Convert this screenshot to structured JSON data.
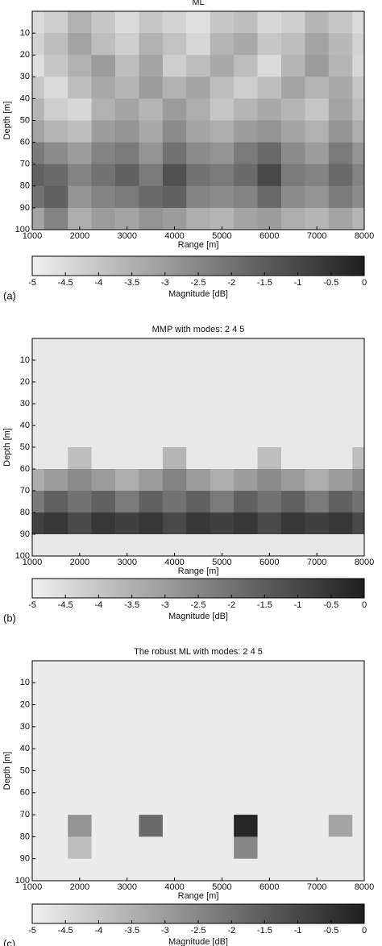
{
  "chart_data": [
    {
      "type": "heatmap",
      "title": "ML",
      "panel_label": "(a)",
      "xlabel": "Range [m]",
      "ylabel": "Depth [m]",
      "x": [
        1000,
        1500,
        2000,
        2500,
        3000,
        3500,
        4000,
        4500,
        5000,
        5500,
        6000,
        6500,
        7000,
        7500,
        8000
      ],
      "y": [
        5,
        15,
        25,
        35,
        45,
        55,
        65,
        75,
        85,
        95
      ],
      "z": [
        [
          -4.5,
          -4.2,
          -3.5,
          -4,
          -4.5,
          -4,
          -4.3,
          -4.6,
          -4,
          -3.8,
          -4.4,
          -4.2,
          -3.6,
          -4,
          -4.5
        ],
        [
          -4.3,
          -3.8,
          -3.2,
          -3.8,
          -4.2,
          -3.5,
          -3.9,
          -4.4,
          -3.6,
          -3.3,
          -4,
          -3.8,
          -3.2,
          -3.7,
          -4.3
        ],
        [
          -4.6,
          -4,
          -3.5,
          -3,
          -3.8,
          -3.2,
          -4.2,
          -3.8,
          -3.3,
          -3.8,
          -4.5,
          -3.6,
          -3,
          -3.6,
          -4.4
        ],
        [
          -4,
          -4.5,
          -3.8,
          -3.3,
          -3.6,
          -3,
          -3.5,
          -3.2,
          -3.8,
          -4.2,
          -3.8,
          -3.2,
          -3.6,
          -3.3,
          -4
        ],
        [
          -3.6,
          -4.2,
          -4.4,
          -3.5,
          -3.2,
          -3.6,
          -3,
          -3.4,
          -4,
          -3.6,
          -3.3,
          -3.6,
          -4,
          -3.2,
          -3.8
        ],
        [
          -3.2,
          -3.6,
          -3.8,
          -3,
          -2.8,
          -3.3,
          -2.6,
          -3.2,
          -3.4,
          -3,
          -2.8,
          -3.2,
          -3.5,
          -2.8,
          -3.4
        ],
        [
          -2.2,
          -2.6,
          -3,
          -2.4,
          -2.2,
          -2.8,
          -2,
          -2.6,
          -2.8,
          -2.2,
          -1.8,
          -2.6,
          -3,
          -2.2,
          -2.8
        ],
        [
          -1.6,
          -1.8,
          -2.4,
          -2,
          -1.6,
          -2.2,
          -1.2,
          -2,
          -2.2,
          -1.8,
          -1,
          -2.2,
          -2.4,
          -1.8,
          -2.4
        ],
        [
          -2,
          -1.6,
          -2.8,
          -2.4,
          -2.2,
          -1.8,
          -1.6,
          -2.4,
          -2.6,
          -2.4,
          -1.8,
          -2.6,
          -2.8,
          -2.2,
          -2.6
        ],
        [
          -3.2,
          -2.4,
          -3.4,
          -3,
          -3.2,
          -2.8,
          -3,
          -3.4,
          -3.6,
          -3.2,
          -3,
          -3.4,
          -3.6,
          -3.2,
          -3.6
        ]
      ],
      "xlim": [
        1000,
        8000
      ],
      "ylim": [
        0,
        100
      ],
      "xticks": [
        1000,
        2000,
        3000,
        4000,
        5000,
        6000,
        7000,
        8000
      ],
      "yticks": [
        10,
        20,
        30,
        40,
        50,
        60,
        70,
        80,
        90,
        100
      ],
      "colorbar": {
        "label": "Magnitude [dB]",
        "lim": [
          -5,
          0
        ],
        "ticks": [
          -5,
          -4.5,
          -4,
          -3.5,
          -3,
          -2.5,
          -2,
          -1.5,
          -1,
          -0.5,
          0
        ]
      }
    },
    {
      "type": "heatmap",
      "title": "MMP with modes: 2 4 5",
      "panel_label": "(b)",
      "xlabel": "Range [m]",
      "ylabel": "Depth [m]",
      "x": [
        1000,
        1500,
        2000,
        2500,
        3000,
        3500,
        4000,
        4500,
        5000,
        5500,
        6000,
        6500,
        7000,
        7500,
        8000
      ],
      "y": [
        5,
        15,
        25,
        35,
        45,
        55,
        65,
        75,
        85,
        95
      ],
      "z": [
        [
          -4.8,
          -4.8,
          -4.8,
          -4.8,
          -4.8,
          -4.8,
          -4.8,
          -4.8,
          -4.8,
          -4.8,
          -4.8,
          -4.8,
          -4.8,
          -4.8,
          -4.8
        ],
        [
          -4.8,
          -4.8,
          -4.8,
          -4.8,
          -4.8,
          -4.8,
          -4.8,
          -4.8,
          -4.8,
          -4.8,
          -4.8,
          -4.8,
          -4.8,
          -4.8,
          -4.8
        ],
        [
          -4.8,
          -4.8,
          -4.8,
          -4.8,
          -4.8,
          -4.8,
          -4.8,
          -4.8,
          -4.8,
          -4.8,
          -4.8,
          -4.8,
          -4.8,
          -4.8,
          -4.8
        ],
        [
          -4.8,
          -4.8,
          -4.8,
          -4.8,
          -4.8,
          -4.8,
          -4.8,
          -4.8,
          -4.8,
          -4.8,
          -4.8,
          -4.8,
          -4.8,
          -4.8,
          -4.8
        ],
        [
          -4.8,
          -4.8,
          -4.8,
          -4.8,
          -4.8,
          -4.8,
          -4.8,
          -4.8,
          -4.8,
          -4.8,
          -4.8,
          -4.8,
          -4.8,
          -4.8,
          -4.8
        ],
        [
          -4.8,
          -4.8,
          -3.8,
          -4.8,
          -4.8,
          -4.8,
          -3.6,
          -4.8,
          -4.8,
          -4.8,
          -3.8,
          -4.8,
          -4.8,
          -4.8,
          -3.8
        ],
        [
          -3.4,
          -3,
          -2.6,
          -3,
          -3.4,
          -3,
          -2.4,
          -3,
          -3.4,
          -3,
          -2.6,
          -3,
          -3.4,
          -3,
          -2.6
        ],
        [
          -2.2,
          -1.6,
          -2,
          -1.6,
          -2.2,
          -1.6,
          -2,
          -1.6,
          -2.2,
          -1.6,
          -2,
          -1.6,
          -2.2,
          -1.6,
          -2
        ],
        [
          -0.8,
          -0.6,
          -1,
          -0.6,
          -0.8,
          -0.6,
          -1,
          -0.6,
          -0.8,
          -0.6,
          -1,
          -0.6,
          -0.8,
          -0.6,
          -1
        ],
        [
          -4.8,
          -4.8,
          -4.8,
          -4.8,
          -4.8,
          -4.8,
          -4.8,
          -4.8,
          -4.8,
          -4.8,
          -4.8,
          -4.8,
          -4.8,
          -4.8,
          -4.8
        ]
      ],
      "xlim": [
        1000,
        8000
      ],
      "ylim": [
        0,
        100
      ],
      "xticks": [
        1000,
        2000,
        3000,
        4000,
        5000,
        6000,
        7000,
        8000
      ],
      "yticks": [
        10,
        20,
        30,
        40,
        50,
        60,
        70,
        80,
        90,
        100
      ],
      "colorbar": {
        "label": "Magnitude [dB]",
        "lim": [
          -5,
          0
        ],
        "ticks": [
          -5,
          -4.5,
          -4,
          -3.5,
          -3,
          -2.5,
          -2,
          -1.5,
          -1,
          -0.5,
          0
        ]
      }
    },
    {
      "type": "heatmap",
      "title": "The robust ML with modes: 2 4 5",
      "panel_label": "(c)",
      "xlabel": "Range [m]",
      "ylabel": "Depth [m]",
      "x": [
        1000,
        1500,
        2000,
        2500,
        3000,
        3500,
        4000,
        4500,
        5000,
        5500,
        6000,
        6500,
        7000,
        7500,
        8000
      ],
      "y": [
        5,
        15,
        25,
        35,
        45,
        55,
        65,
        75,
        85,
        95
      ],
      "z": [
        [
          -4.9,
          -4.9,
          -4.9,
          -4.9,
          -4.9,
          -4.9,
          -4.9,
          -4.9,
          -4.9,
          -4.9,
          -4.9,
          -4.9,
          -4.9,
          -4.9,
          -4.9
        ],
        [
          -4.9,
          -4.9,
          -4.9,
          -4.9,
          -4.9,
          -4.9,
          -4.9,
          -4.9,
          -4.9,
          -4.9,
          -4.9,
          -4.9,
          -4.9,
          -4.9,
          -4.9
        ],
        [
          -4.9,
          -4.9,
          -4.9,
          -4.9,
          -4.9,
          -4.9,
          -4.9,
          -4.9,
          -4.9,
          -4.9,
          -4.9,
          -4.9,
          -4.9,
          -4.9,
          -4.9
        ],
        [
          -4.9,
          -4.9,
          -4.9,
          -4.9,
          -4.9,
          -4.9,
          -4.9,
          -4.9,
          -4.9,
          -4.9,
          -4.9,
          -4.9,
          -4.9,
          -4.9,
          -4.9
        ],
        [
          -4.9,
          -4.9,
          -4.9,
          -4.9,
          -4.9,
          -4.9,
          -4.9,
          -4.9,
          -4.9,
          -4.9,
          -4.9,
          -4.9,
          -4.9,
          -4.9,
          -4.9
        ],
        [
          -4.9,
          -4.9,
          -4.9,
          -4.9,
          -4.9,
          -4.9,
          -4.9,
          -4.9,
          -4.9,
          -4.9,
          -4.9,
          -4.9,
          -4.9,
          -4.9,
          -4.9
        ],
        [
          -4.9,
          -4.9,
          -4.9,
          -4.9,
          -4.9,
          -4.9,
          -4.9,
          -4.9,
          -4.9,
          -4.9,
          -4.9,
          -4.9,
          -4.9,
          -4.9,
          -4.9
        ],
        [
          -4.9,
          -4.9,
          -2.8,
          -4.9,
          -4.9,
          -1.8,
          -4.9,
          -4.9,
          -4.9,
          -0.2,
          -4.9,
          -4.9,
          -4.9,
          -3.2,
          -4.9
        ],
        [
          -4.9,
          -4.9,
          -3.8,
          -4.9,
          -4.9,
          -4.9,
          -4.9,
          -4.9,
          -4.9,
          -2.5,
          -4.9,
          -4.9,
          -4.9,
          -4.9,
          -4.9
        ],
        [
          -4.9,
          -4.9,
          -4.9,
          -4.9,
          -4.9,
          -4.9,
          -4.9,
          -4.9,
          -4.9,
          -4.9,
          -4.9,
          -4.9,
          -4.9,
          -4.9,
          -4.9
        ]
      ],
      "xlim": [
        1000,
        8000
      ],
      "ylim": [
        0,
        100
      ],
      "xticks": [
        1000,
        2000,
        3000,
        4000,
        5000,
        6000,
        7000,
        8000
      ],
      "yticks": [
        10,
        20,
        30,
        40,
        50,
        60,
        70,
        80,
        90,
        100
      ],
      "colorbar": {
        "label": "Magnitude [dB]",
        "lim": [
          -5,
          0
        ],
        "ticks": [
          -5,
          -4.5,
          -4,
          -3.5,
          -3,
          -2.5,
          -2,
          -1.5,
          -1,
          -0.5,
          0
        ]
      }
    }
  ]
}
